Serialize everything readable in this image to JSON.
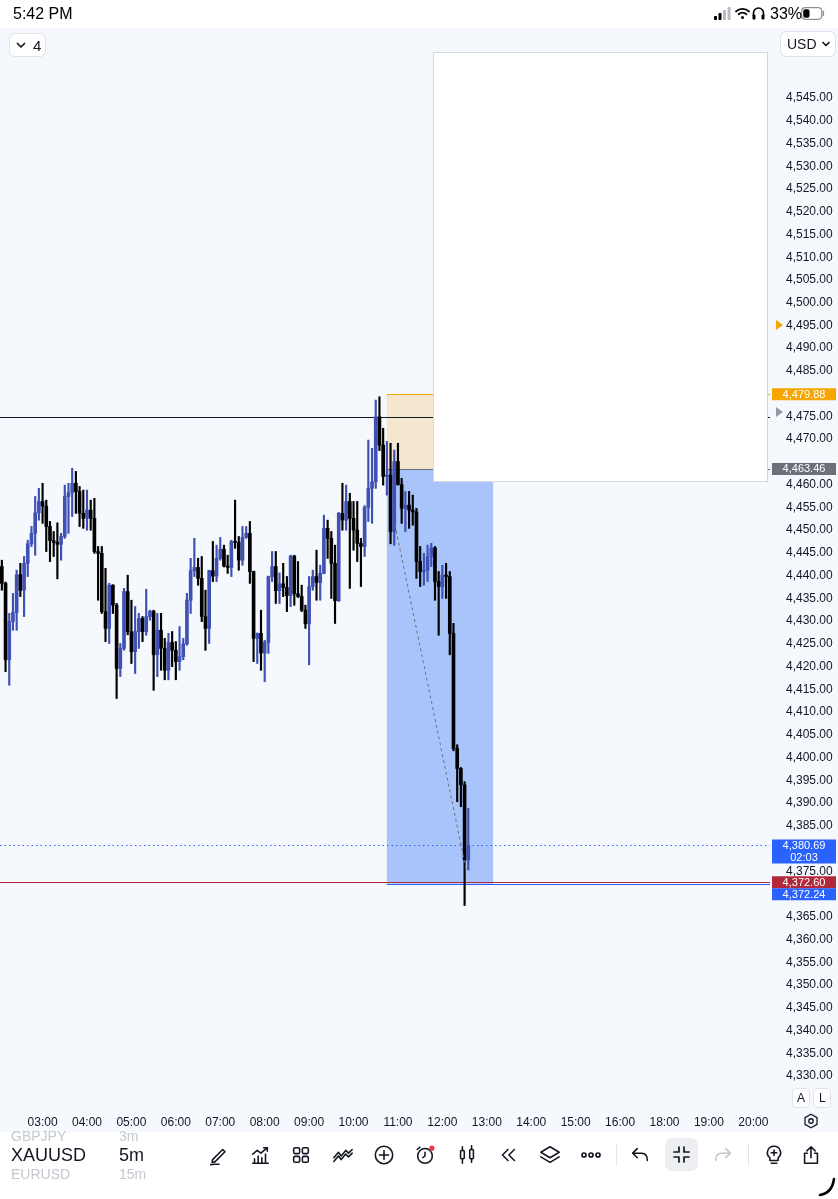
{
  "chart_data": {
    "type": "candlestick",
    "title": "XAUUSD",
    "subtitle": "5m",
    "categories": [
      null,
      null,
      null,
      null,
      null,
      null,
      null,
      null,
      null,
      null,
      null,
      "03:00",
      null,
      null,
      null,
      null,
      null,
      null,
      null,
      null,
      null,
      null,
      null,
      "04:00",
      null,
      null,
      null,
      null,
      null,
      null,
      null,
      null,
      null,
      null,
      null,
      "05:00",
      null,
      null,
      null,
      null,
      null,
      null,
      null,
      null,
      null,
      null,
      null,
      "06:00",
      null,
      null,
      null,
      null,
      null,
      null,
      null,
      null,
      null,
      null,
      null,
      "07:00",
      null,
      null,
      null,
      null,
      null,
      null,
      null,
      null,
      null,
      null,
      null,
      "08:00",
      null,
      null,
      null,
      null,
      null,
      null,
      null,
      null,
      null,
      null,
      null,
      "09:00",
      null,
      null,
      null,
      null,
      null,
      null,
      null,
      null,
      null,
      null,
      null,
      "10:00",
      null,
      null,
      null,
      null,
      null,
      null,
      null,
      null,
      null,
      null,
      null,
      "11:00",
      null,
      null,
      null,
      null,
      null,
      null,
      null,
      null,
      null,
      null,
      null,
      "12:00",
      null,
      null,
      null,
      null,
      null,
      null,
      null,
      null,
      null,
      null,
      null,
      "13:00",
      null,
      null,
      null,
      null,
      null,
      null,
      null,
      null,
      null,
      null,
      null,
      "14:00",
      null,
      null,
      null,
      null,
      null,
      null,
      null,
      null,
      null,
      null,
      null,
      "15:00",
      null,
      null,
      null,
      null,
      null,
      null,
      null,
      null,
      null,
      null,
      null,
      "16:00",
      null,
      null,
      null,
      null,
      null,
      null,
      null,
      null,
      null,
      null,
      null,
      "18:00",
      null,
      null,
      null,
      null,
      null,
      null,
      null,
      null,
      null,
      null,
      null,
      "19:00",
      null,
      null,
      null,
      null,
      null,
      null,
      null,
      null,
      null,
      null,
      null,
      "20:00",
      null,
      null,
      null,
      null
    ],
    "ohlc": [
      [
        4442.0,
        4443.4,
        4436.8,
        4438.3
      ],
      [
        4438.3,
        4438.6,
        4418.9,
        4421.5
      ],
      [
        4421.5,
        4431.7,
        4415.9,
        4429.9
      ],
      [
        4429.9,
        4436.1,
        4428.0,
        4431.9
      ],
      [
        4431.9,
        4441.2,
        4428.0,
        4440.2
      ],
      [
        4440.2,
        4442.7,
        4435.4,
        4436.8
      ],
      [
        4436.8,
        4444.2,
        4431.0,
        4442.7
      ],
      [
        4442.7,
        4447.8,
        4439.8,
        4447.0
      ],
      [
        4447.0,
        4450.8,
        4446.4,
        4449.3
      ],
      [
        4449.3,
        4457.4,
        4444.5,
        4453.8
      ],
      [
        4453.8,
        4459.2,
        4452.2,
        4456.3
      ],
      [
        4456.3,
        4460.3,
        4451.5,
        4455.3
      ],
      [
        4455.3,
        4456.6,
        4445.3,
        4450.8
      ],
      [
        4450.8,
        4451.9,
        4443.1,
        4447.7
      ],
      [
        4447.7,
        4449.7,
        4444.2,
        4447.3
      ],
      [
        4447.3,
        4451.6,
        4439.3,
        4446.9
      ],
      [
        4446.9,
        4449.3,
        4443.4,
        4448.6
      ],
      [
        4448.6,
        4459.9,
        4448.2,
        4457.4
      ],
      [
        4457.4,
        4460.3,
        4449.3,
        4458.2
      ],
      [
        4458.2,
        4463.6,
        4453.0,
        4460.3
      ],
      [
        4460.3,
        4462.9,
        4453.7,
        4458.5
      ],
      [
        4458.5,
        4459.6,
        4450.8,
        4453.7
      ],
      [
        4453.7,
        4458.8,
        4450.4,
        4452.6
      ],
      [
        4452.6,
        4458.8,
        4450.0,
        4454.4
      ],
      [
        4454.4,
        4456.6,
        4450.0,
        4452.6
      ],
      [
        4452.6,
        4457.0,
        4444.9,
        4445.3
      ],
      [
        4445.3,
        4446.4,
        4434.6,
        4444.9
      ],
      [
        4444.9,
        4446.4,
        4431.7,
        4432.1
      ],
      [
        4432.1,
        4441.6,
        4425.5,
        4428.4
      ],
      [
        4428.4,
        4438.3,
        4425.1,
        4437.9
      ],
      [
        4437.9,
        4438.0,
        4431.7,
        4433.5
      ],
      [
        4433.5,
        4433.9,
        4413.0,
        4419.6
      ],
      [
        4419.6,
        4425.1,
        4417.8,
        4424.0
      ],
      [
        4424.0,
        4437.2,
        4423.6,
        4436.5
      ],
      [
        4436.5,
        4440.1,
        4427.0,
        4427.7
      ],
      [
        4427.7,
        4434.6,
        4420.7,
        4423.3
      ],
      [
        4423.3,
        4433.2,
        4418.5,
        4427.7
      ],
      [
        4427.7,
        4431.7,
        4424.0,
        4430.6
      ],
      [
        4430.6,
        4431.0,
        4425.5,
        4427.7
      ],
      [
        4427.7,
        4437.0,
        4426.9,
        4431.0
      ],
      [
        4431.0,
        4432.4,
        4430.2,
        4432.2
      ],
      [
        4432.2,
        4432.4,
        4414.8,
        4422.6
      ],
      [
        4422.6,
        4431.7,
        4417.8,
        4428.0
      ],
      [
        4428.0,
        4431.7,
        4419.2,
        4424.0
      ],
      [
        4424.0,
        4426.2,
        4417.1,
        4419.2
      ],
      [
        4419.2,
        4427.3,
        4417.1,
        4425.3
      ],
      [
        4425.3,
        4427.7,
        4420.0,
        4423.6
      ],
      [
        4423.6,
        4425.5,
        4417.1,
        4421.1
      ],
      [
        4421.1,
        4428.8,
        4419.2,
        4422.2
      ],
      [
        4422.2,
        4426.2,
        4421.5,
        4425.0
      ],
      [
        4425.0,
        4436.1,
        4424.7,
        4434.6
      ],
      [
        4434.6,
        4443.8,
        4431.7,
        4441.1
      ],
      [
        4441.1,
        4448.2,
        4439.8,
        4441.8
      ],
      [
        4441.8,
        4443.8,
        4437.9,
        4439.4
      ],
      [
        4439.4,
        4444.2,
        4429.9,
        4431.0
      ],
      [
        4431.0,
        4436.8,
        4423.6,
        4428.4
      ],
      [
        4428.4,
        4441.2,
        4425.1,
        4441.1
      ],
      [
        4441.1,
        4447.5,
        4438.7,
        4439.9
      ],
      [
        4439.9,
        4446.7,
        4438.7,
        4443.8
      ],
      [
        4443.8,
        4448.4,
        4443.4,
        4445.8
      ],
      [
        4445.8,
        4446.7,
        4441.9,
        4442.1
      ],
      [
        4442.1,
        4444.5,
        4440.5,
        4441.8
      ],
      [
        4441.8,
        4447.8,
        4439.8,
        4447.5
      ],
      [
        4447.5,
        4456.6,
        4446.0,
        4447.3
      ],
      [
        4447.3,
        4448.6,
        4441.2,
        4443.4
      ],
      [
        4443.4,
        4450.8,
        4442.3,
        4448.4
      ],
      [
        4448.4,
        4450.8,
        4448.2,
        4449.3
      ],
      [
        4449.3,
        4451.9,
        4438.3,
        4440.9
      ],
      [
        4440.9,
        4441.0,
        4421.1,
        4426.2
      ],
      [
        4426.2,
        4427.4,
        4420.7,
        4427.3
      ],
      [
        4427.3,
        4432.4,
        4419.2,
        4423.0
      ],
      [
        4423.0,
        4425.8,
        4416.7,
        4425.3
      ],
      [
        4425.3,
        4439.9,
        4422.9,
        4439.8
      ],
      [
        4439.8,
        4445.3,
        4438.7,
        4442.0
      ],
      [
        4442.0,
        4445.3,
        4433.9,
        4436.7
      ],
      [
        4436.7,
        4440.6,
        4433.9,
        4438.2
      ],
      [
        4438.2,
        4442.7,
        4435.4,
        4437.4
      ],
      [
        4437.4,
        4439.8,
        4432.1,
        4435.6
      ],
      [
        4435.6,
        4444.5,
        4433.2,
        4444.3
      ],
      [
        4444.3,
        4444.5,
        4433.5,
        4436.0
      ],
      [
        4436.0,
        4443.1,
        4435.2,
        4435.4
      ],
      [
        4435.4,
        4437.9,
        4432.1,
        4432.4
      ],
      [
        4432.4,
        4433.5,
        4428.4,
        4429.4
      ],
      [
        4429.4,
        4439.8,
        4420.4,
        4437.6
      ],
      [
        4437.6,
        4441.2,
        4436.8,
        4439.8
      ],
      [
        4439.8,
        4445.6,
        4434.6,
        4438.5
      ],
      [
        4438.5,
        4442.3,
        4434.6,
        4440.5
      ],
      [
        4440.5,
        4453.3,
        4440.4,
        4450.4
      ],
      [
        4450.4,
        4452.2,
        4443.8,
        4448.2
      ],
      [
        4448.2,
        4449.7,
        4435.0,
        4442.7
      ],
      [
        4442.7,
        4446.7,
        4429.5,
        4434.5
      ],
      [
        4434.5,
        4453.9,
        4434.3,
        4453.7
      ],
      [
        4453.7,
        4460.3,
        4450.0,
        4452.2
      ],
      [
        4452.2,
        4459.9,
        4450.0,
        4456.3
      ],
      [
        4456.3,
        4458.1,
        4437.2,
        4452.6
      ],
      [
        4452.6,
        4456.3,
        4445.6,
        4450.0
      ],
      [
        4450.0,
        4456.3,
        4443.1,
        4447.1
      ],
      [
        4447.1,
        4448.2,
        4437.6,
        4446.4
      ],
      [
        4446.4,
        4455.4,
        4444.2,
        4455.0
      ],
      [
        4455.0,
        4469.8,
        4451.9,
        4459.2
      ],
      [
        4459.2,
        4468.0,
        4451.5,
        4460.6
      ],
      [
        4460.6,
        4478.6,
        4459.2,
        4474.9
      ],
      [
        4474.9,
        4479.3,
        4467.5,
        4468.7
      ],
      [
        4468.7,
        4472.4,
        4459.9,
        4461.8
      ],
      [
        4461.8,
        4469.5,
        4457.7,
        4462.1
      ],
      [
        4462.1,
        4469.1,
        4447.0,
        4449.7
      ],
      [
        4449.7,
        4467.6,
        4446.7,
        4465.1
      ],
      [
        4465.1,
        4469.1,
        4459.9,
        4460.0
      ],
      [
        4460.0,
        4461.4,
        4451.5,
        4454.8
      ],
      [
        4454.8,
        4458.5,
        4449.7,
        4455.5
      ],
      [
        4455.5,
        4458.5,
        4450.4,
        4454.4
      ],
      [
        4454.4,
        4457.7,
        4451.1,
        4454.0
      ],
      [
        4454.0,
        4454.8,
        4439.4,
        4443.1
      ],
      [
        4443.1,
        4446.4,
        4437.6,
        4440.9
      ],
      [
        4440.9,
        4444.9,
        4437.9,
        4441.2
      ],
      [
        4441.2,
        4446.7,
        4438.7,
        4444.2
      ],
      [
        4444.2,
        4447.1,
        4442.0,
        4446.1
      ],
      [
        4446.1,
        4446.4,
        4434.6,
        4438.7
      ],
      [
        4438.7,
        4440.9,
        4426.9,
        4437.6
      ],
      [
        4437.6,
        4442.3,
        4435.0,
        4440.1
      ],
      [
        4440.1,
        4442.7,
        4435.0,
        4439.8
      ],
      [
        4439.8,
        4440.9,
        4422.6,
        4427.3
      ],
      [
        4427.3,
        4429.5,
        4401.5,
        4402.0
      ],
      [
        4402.0,
        4402.8,
        4390.3,
        4397.6
      ],
      [
        4397.6,
        4397.8,
        4389.2,
        4394.0
      ],
      [
        4394.0,
        4394.7,
        4367.5,
        4377.5
      ],
      [
        4377.5,
        4388.8,
        4375.3,
        4380.69
      ],
      null,
      null,
      null,
      null,
      null,
      null,
      null,
      null,
      null,
      null,
      null,
      null,
      null,
      null,
      null,
      null,
      null,
      null,
      null,
      null,
      null,
      null,
      null,
      null,
      null,
      null,
      null,
      null,
      null,
      null,
      null,
      null,
      null,
      null,
      null,
      null,
      null,
      null,
      null,
      null,
      null,
      null,
      null,
      null,
      null,
      null,
      null,
      null,
      null,
      null,
      null,
      null,
      null,
      null,
      null,
      null,
      null,
      null,
      null,
      null,
      null,
      null,
      null,
      null,
      null,
      null,
      null,
      null,
      null,
      null,
      null,
      null,
      null,
      null,
      null,
      null,
      null,
      null,
      null,
      null,
      null
    ],
    "colors": [
      "#000000",
      "#000000",
      "#3f51b5",
      "#3f51b5",
      "#3f51b5",
      "#000000",
      "#3f51b5",
      "#3f51b5",
      "#3f51b5",
      "#3f51b5",
      "#3f51b5",
      "#000000",
      "#000000",
      "#000000",
      "#000000",
      "#000000",
      "#3f51b5",
      "#3f51b5",
      "#3f51b5",
      "#3f51b5",
      "#000000",
      "#000000",
      "#000000",
      "#3f51b5",
      "#000000",
      "#000000",
      "#000000",
      "#000000",
      "#000000",
      "#3f51b5",
      "#000000",
      "#000000",
      "#3f51b5",
      "#3f51b5",
      "#000000",
      "#000000",
      "#3f51b5",
      "#3f51b5",
      "#000000",
      "#3f51b5",
      "#3f51b5",
      "#000000",
      "#3f51b5",
      "#000000",
      "#000000",
      "#3f51b5",
      "#000000",
      "#000000",
      "#3f51b5",
      "#3f51b5",
      "#3f51b5",
      "#3f51b5",
      "#3f51b5",
      "#000000",
      "#000000",
      "#000000",
      "#3f51b5",
      "#000000",
      "#3f51b5",
      "#3f51b5",
      "#000000",
      "#000000",
      "#3f51b5",
      "#000000",
      "#000000",
      "#3f51b5",
      "#3f51b5",
      "#000000",
      "#000000",
      "#3f51b5",
      "#000000",
      "#3f51b5",
      "#3f51b5",
      "#3f51b5",
      "#000000",
      "#3f51b5",
      "#000000",
      "#000000",
      "#3f51b5",
      "#000000",
      "#000000",
      "#000000",
      "#000000",
      "#3f51b5",
      "#3f51b5",
      "#000000",
      "#3f51b5",
      "#3f51b5",
      "#000000",
      "#000000",
      "#000000",
      "#3f51b5",
      "#000000",
      "#3f51b5",
      "#000000",
      "#000000",
      "#000000",
      "#000000",
      "#3f51b5",
      "#3f51b5",
      "#3f51b5",
      "#3f51b5",
      "#000000",
      "#000000",
      "#3f51b5",
      "#000000",
      "#3f51b5",
      "#000000",
      "#000000",
      "#3f51b5",
      "#000000",
      "#000000",
      "#000000",
      "#000000",
      "#3f51b5",
      "#3f51b5",
      "#3f51b5",
      "#000000",
      "#000000",
      "#3f51b5",
      "#000000",
      "#000000",
      "#000000",
      "#000000",
      "#000000",
      "#000000",
      "#3f51b5",
      null,
      null,
      null,
      null,
      null,
      null,
      null,
      null,
      null,
      null,
      null,
      null,
      null,
      null,
      null,
      null,
      null,
      null,
      null,
      null,
      null,
      null,
      null,
      null,
      null,
      null,
      null,
      null,
      null,
      null,
      null,
      null,
      null,
      null,
      null,
      null,
      null,
      null,
      null,
      null,
      null,
      null,
      null,
      null,
      null,
      null,
      null,
      null,
      null,
      null,
      null,
      null,
      null,
      null,
      null,
      null,
      null,
      null,
      null,
      null,
      null,
      null,
      null,
      null,
      null,
      null,
      null,
      null,
      null,
      null,
      null,
      null,
      null,
      null,
      null,
      null,
      null,
      null,
      null,
      null,
      null
    ],
    "ylim": [
      4330,
      4545
    ],
    "yticks": [
      {
        "value": 4330,
        "label": "4,330.00"
      },
      {
        "value": 4335,
        "label": "4,335.00"
      },
      {
        "value": 4340,
        "label": "4,340.00"
      },
      {
        "value": 4345,
        "label": "4,345.00"
      },
      {
        "value": 4350,
        "label": "4,350.00"
      },
      {
        "value": 4355,
        "label": "4,355.00"
      },
      {
        "value": 4360,
        "label": "4,360.00"
      },
      {
        "value": 4365,
        "label": "4,365.00"
      },
      {
        "value": 4375,
        "label": "4,375.00"
      },
      {
        "value": 4385,
        "label": "4,385.00"
      },
      {
        "value": 4390,
        "label": "4,390.00"
      },
      {
        "value": 4395,
        "label": "4,395.00"
      },
      {
        "value": 4400,
        "label": "4,400.00"
      },
      {
        "value": 4405,
        "label": "4,405.00"
      },
      {
        "value": 4410,
        "label": "4,410.00"
      },
      {
        "value": 4415,
        "label": "4,415.00"
      },
      {
        "value": 4420,
        "label": "4,420.00"
      },
      {
        "value": 4425,
        "label": "4,425.00"
      },
      {
        "value": 4430,
        "label": "4,430.00"
      },
      {
        "value": 4435,
        "label": "4,435.00"
      },
      {
        "value": 4440,
        "label": "4,440.00"
      },
      {
        "value": 4445,
        "label": "4,445.00"
      },
      {
        "value": 4450,
        "label": "4,450.00"
      },
      {
        "value": 4455,
        "label": "4,455.00"
      },
      {
        "value": 4460,
        "label": "4,460.00"
      },
      {
        "value": 4470,
        "label": "4,470.00"
      },
      {
        "value": 4475,
        "label": "4,475.00"
      },
      {
        "value": 4485,
        "label": "4,485.00"
      },
      {
        "value": 4490,
        "label": "4,490.00"
      },
      {
        "value": 4495,
        "label": "4,495.00"
      },
      {
        "value": 4500,
        "label": "4,500.00"
      },
      {
        "value": 4505,
        "label": "4,505.00"
      },
      {
        "value": 4510,
        "label": "4,510.00"
      },
      {
        "value": 4515,
        "label": "4,515.00"
      },
      {
        "value": 4520,
        "label": "4,520.00"
      },
      {
        "value": 4525,
        "label": "4,525.00"
      },
      {
        "value": 4530,
        "label": "4,530.00"
      },
      {
        "value": 4535,
        "label": "4,535.00"
      },
      {
        "value": 4540,
        "label": "4,540.00"
      },
      {
        "value": 4545,
        "label": "4,545.00"
      }
    ],
    "grid": false,
    "legend": false,
    "bands": [
      {
        "axis": "y",
        "from": 4463.46,
        "to": 4479.88,
        "color": "#f5e6cf"
      },
      {
        "axis": "y",
        "from": 4372.24,
        "to": 4463.46,
        "color": "#a9c4fa"
      }
    ],
    "ref_lines": [
      {
        "axis": "y",
        "value": 4474.9,
        "color": "#131722"
      },
      {
        "axis": "y",
        "value": 4479.88,
        "label": "4,479.88",
        "color": "#f7a600"
      },
      {
        "axis": "y",
        "value": 4463.46,
        "label": "4,463.46",
        "color": "#6d707b"
      },
      {
        "axis": "y",
        "value": 4380.69,
        "label": "4,380.69\n02:03",
        "color": "#2962ff",
        "line_style": "dotted"
      },
      {
        "axis": "y",
        "value": 4372.6,
        "label": "4,372.60",
        "color": "#b2283a"
      },
      {
        "axis": "y",
        "value": 4372.24,
        "label": "4,372.24",
        "color": "#2962ff"
      }
    ],
    "annotations": [
      "5:42 PM",
      "33%",
      "4",
      "USD",
      "A",
      "L",
      "GBPJPY",
      "3m",
      "EURUSD",
      "15m"
    ]
  }
}
